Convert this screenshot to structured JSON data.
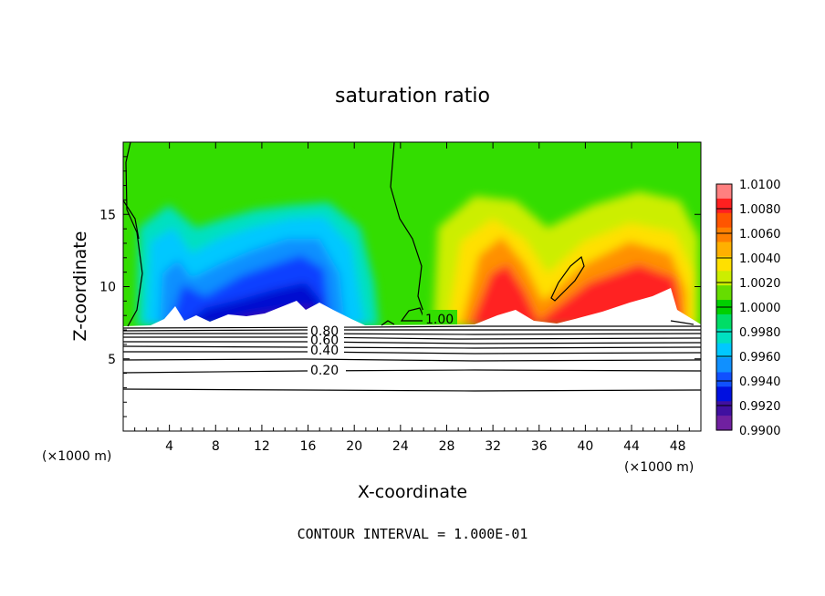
{
  "chart_data": {
    "type": "heatmap",
    "title": "saturation ratio",
    "xlabel": "X-coordinate",
    "ylabel": "Z-coordinate",
    "x_unit_left": "(×1000 m)",
    "x_unit_right": "(×1000 m)",
    "xlim": [
      0,
      50
    ],
    "ylim": [
      0,
      20
    ],
    "x_ticks": [
      4,
      8,
      12,
      16,
      20,
      24,
      28,
      32,
      36,
      40,
      44,
      48
    ],
    "x_tick_labels": [
      "4",
      "8",
      "12",
      "16",
      "20",
      "24",
      "28",
      "32",
      "36",
      "40",
      "44",
      "48"
    ],
    "y_ticks": [
      5,
      10,
      15
    ],
    "y_tick_labels": [
      "5",
      "10",
      "15"
    ],
    "colorbar": {
      "min": 0.99,
      "max": 1.01,
      "labels": [
        "1.0100",
        "1.0080",
        "1.0060",
        "1.0040",
        "1.0020",
        "1.0000",
        "0.9980",
        "0.9960",
        "0.9940",
        "0.9920",
        "0.9900"
      ],
      "colors": [
        "#ff8080",
        "#ff2020",
        "#ff5500",
        "#ff8000",
        "#ffb000",
        "#ffe000",
        "#ccee00",
        "#66dd00",
        "#00d000",
        "#00dd66",
        "#00e0c0",
        "#00c8ff",
        "#1090ff",
        "#1050ff",
        "#0010e0",
        "#4010a0",
        "#7020a0"
      ]
    },
    "contour_interval": 0.1,
    "contour_labels": [
      "1.00",
      "0.80",
      "0.60",
      "0.40",
      "0.20"
    ],
    "footer": "CONTOUR INTERVAL = 1.000E-01"
  }
}
